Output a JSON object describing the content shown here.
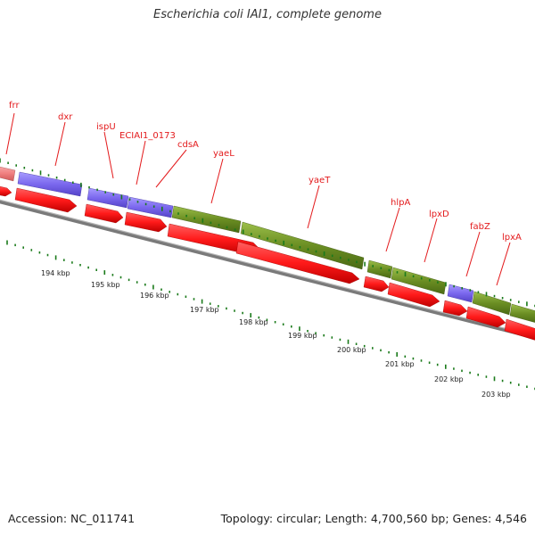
{
  "title": "Escherichia coli IAI1, complete genome",
  "footer": {
    "accession": "Accession: NC_011741",
    "summary": "Topology: circular; Length: 4,700,560 bp; Genes: 4,546"
  },
  "colors": {
    "cds": "#ff1a1a",
    "cds_edge": "#a30000",
    "category_olive": "#6b8e23",
    "category_purple": "#7b68ee",
    "category_pink": "#f08080",
    "gc_skew": "#1a7a1a",
    "backbone": "#8c8c8c",
    "label": "#e31a1c"
  },
  "gene_labels": [
    "frr",
    "dxr",
    "ispU",
    "ECIAI1_0173",
    "cdsA",
    "yaeL",
    "yaeT",
    "hlpA",
    "lpxD",
    "fabZ",
    "lpxA"
  ],
  "kbp_ticks": [
    "194 kbp",
    "195 kbp",
    "196 kbp",
    "197 kbp",
    "198 kbp",
    "199 kbp",
    "200 kbp",
    "201 kbp",
    "202 kbp",
    "203 kbp"
  ]
}
